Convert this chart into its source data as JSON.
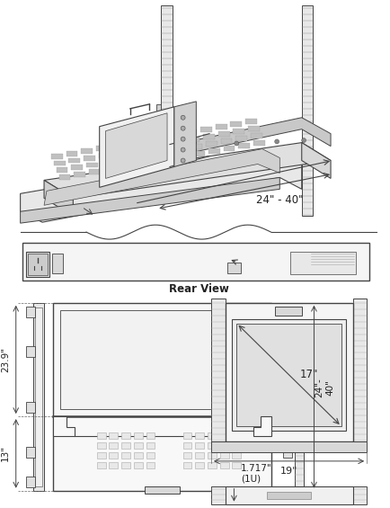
{
  "bg_color": "#ffffff",
  "lc": "#444444",
  "lc_light": "#888888",
  "dim_24_40": "24\" - 40\"",
  "dim_17": "17\"",
  "dim_19": "19\"",
  "dim_23_9": "23.9\"",
  "dim_13": "13\"",
  "dim_24_40b": "24\"-\n40\"",
  "dim_1717": "1.717\"\n(1U)",
  "rear_view_label": "Rear View"
}
